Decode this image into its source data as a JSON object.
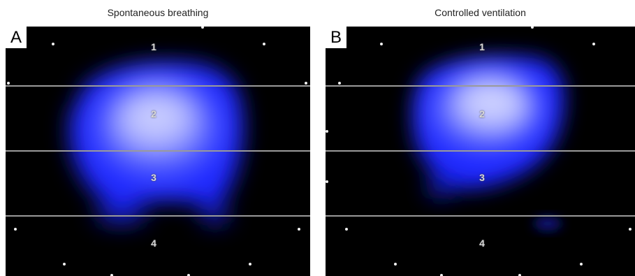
{
  "panels": [
    {
      "letter": "A",
      "caption": "Spontaneous breathing",
      "regions": [
        "1",
        "2",
        "3",
        "4"
      ]
    },
    {
      "letter": "B",
      "caption": "Controlled ventilation",
      "regions": [
        "1",
        "2",
        "3",
        "4"
      ]
    }
  ],
  "colors": {
    "background": "#000000",
    "ventilation_core": "#e6e8ff",
    "ventilation_edge": "#1e28ff",
    "region_divider": "#9a9a9a"
  }
}
